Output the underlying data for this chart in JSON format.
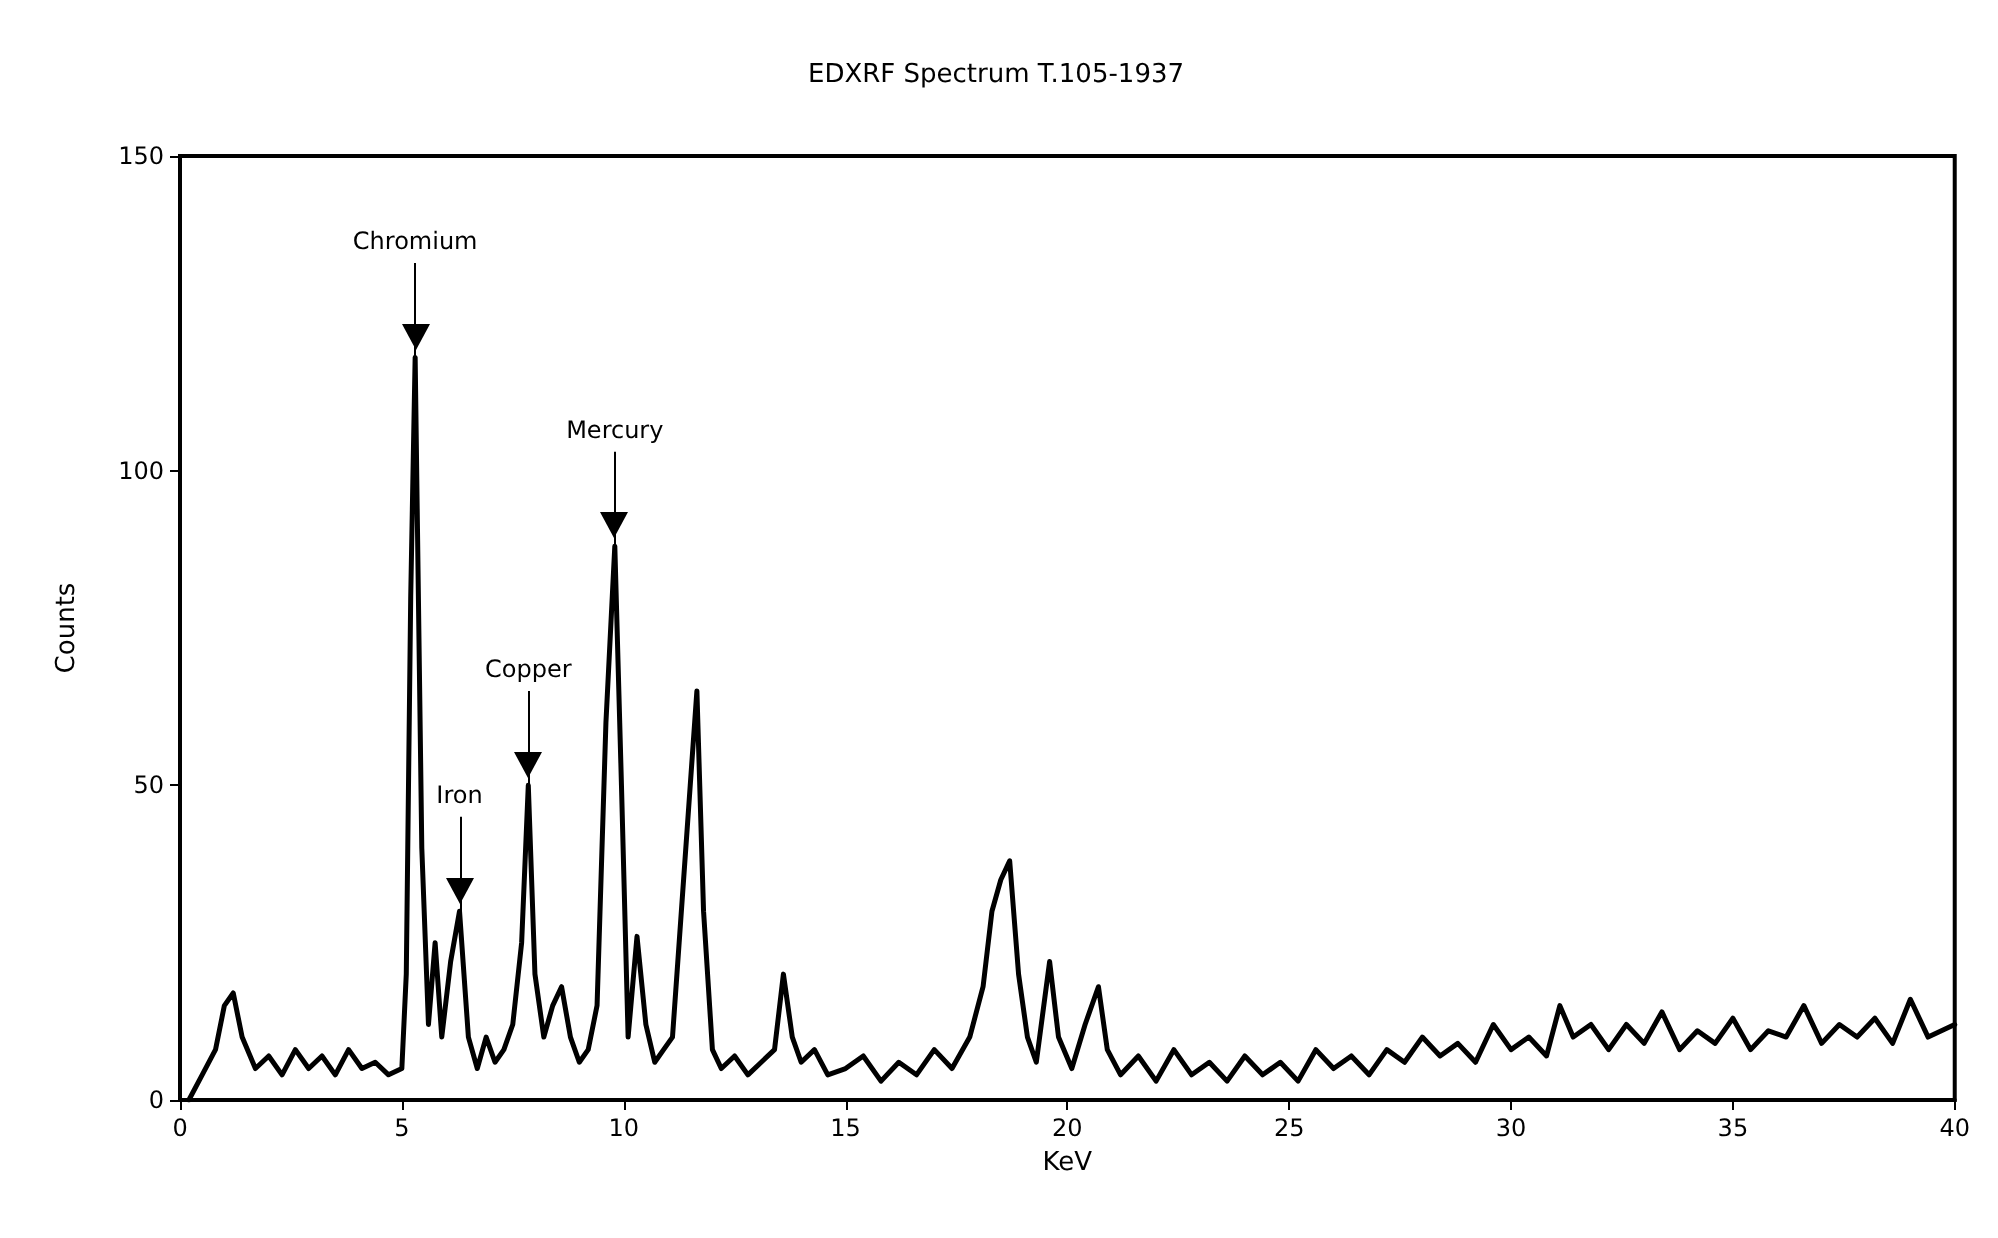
{
  "chart_data": {
    "type": "line",
    "title": "EDXRF Spectrum T.105-1937",
    "xlabel": "KeV",
    "ylabel": "Counts",
    "xlim": [
      0,
      40
    ],
    "xticks": [
      0,
      5,
      10,
      15,
      20,
      25,
      30,
      35,
      40
    ],
    "ylim": [
      0,
      150
    ],
    "yticks": [
      0,
      50,
      100,
      150
    ],
    "grid": false,
    "marker": "none",
    "line_style": "solid",
    "annotations": [
      {
        "text": "Chromium",
        "x": 5.3,
        "y": 118
      },
      {
        "text": "Iron",
        "x": 6.3,
        "y": 30
      },
      {
        "text": "Copper",
        "x": 7.85,
        "y": 50
      },
      {
        "text": "Mercury",
        "x": 9.8,
        "y": 88
      }
    ],
    "series": [
      {
        "color": "#000000",
        "x": [
          0.2,
          0.5,
          0.8,
          1.0,
          1.2,
          1.4,
          1.7,
          2.0,
          2.3,
          2.6,
          2.9,
          3.2,
          3.5,
          3.8,
          4.1,
          4.4,
          4.7,
          5.0,
          5.1,
          5.2,
          5.3,
          5.45,
          5.6,
          5.75,
          5.9,
          6.1,
          6.3,
          6.5,
          6.7,
          6.9,
          7.1,
          7.3,
          7.5,
          7.7,
          7.85,
          8.0,
          8.2,
          8.4,
          8.6,
          8.8,
          9.0,
          9.2,
          9.4,
          9.6,
          9.8,
          9.95,
          10.1,
          10.3,
          10.5,
          10.7,
          10.9,
          11.1,
          11.3,
          11.5,
          11.65,
          11.8,
          12.0,
          12.2,
          12.5,
          12.8,
          13.1,
          13.4,
          13.6,
          13.8,
          14.0,
          14.3,
          14.6,
          15.0,
          15.4,
          15.8,
          16.2,
          16.6,
          17.0,
          17.4,
          17.8,
          18.1,
          18.3,
          18.5,
          18.7,
          18.9,
          19.1,
          19.3,
          19.6,
          19.8,
          20.1,
          20.4,
          20.7,
          20.9,
          21.2,
          21.6,
          22.0,
          22.4,
          22.8,
          23.2,
          23.6,
          24.0,
          24.4,
          24.8,
          25.2,
          25.6,
          26.0,
          26.4,
          26.8,
          27.2,
          27.6,
          28.0,
          28.4,
          28.8,
          29.2,
          29.6,
          30.0,
          30.4,
          30.8,
          31.1,
          31.4,
          31.8,
          32.2,
          32.6,
          33.0,
          33.4,
          33.8,
          34.2,
          34.6,
          35.0,
          35.4,
          35.8,
          36.2,
          36.6,
          37.0,
          37.4,
          37.8,
          38.2,
          38.6,
          39.0,
          39.4,
          40.0
        ],
        "values": [
          0,
          4,
          8,
          15,
          17,
          10,
          5,
          7,
          4,
          8,
          5,
          7,
          4,
          8,
          5,
          6,
          4,
          5,
          20,
          80,
          118,
          40,
          12,
          25,
          10,
          22,
          30,
          10,
          5,
          10,
          6,
          8,
          12,
          25,
          50,
          20,
          10,
          15,
          18,
          10,
          6,
          8,
          15,
          60,
          88,
          50,
          10,
          26,
          12,
          6,
          8,
          10,
          30,
          50,
          65,
          30,
          8,
          5,
          7,
          4,
          6,
          8,
          20,
          10,
          6,
          8,
          4,
          5,
          7,
          3,
          6,
          4,
          8,
          5,
          10,
          18,
          30,
          35,
          38,
          20,
          10,
          6,
          22,
          10,
          5,
          12,
          18,
          8,
          4,
          7,
          3,
          8,
          4,
          6,
          3,
          7,
          4,
          6,
          3,
          8,
          5,
          7,
          4,
          8,
          6,
          10,
          7,
          9,
          6,
          12,
          8,
          10,
          7,
          15,
          10,
          12,
          8,
          12,
          9,
          14,
          8,
          11,
          9,
          13,
          8,
          11,
          10,
          15,
          9,
          12,
          10,
          13,
          9,
          16,
          10,
          12
        ]
      }
    ]
  }
}
